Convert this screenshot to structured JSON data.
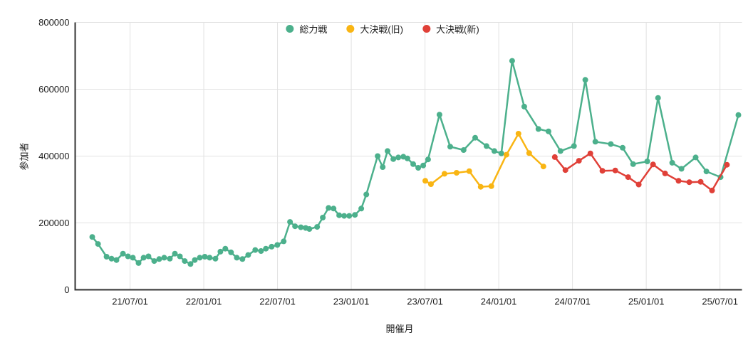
{
  "chart_data": {
    "type": "line",
    "title": "",
    "xlabel": "開催月",
    "ylabel": "参加者",
    "xlim": [
      2021.128,
      2025.649
    ],
    "ylim": [
      0,
      800000
    ],
    "grid": true,
    "legend_position": "top-center",
    "background_color": "#ffffff",
    "axis_color": "#333333",
    "grid_color": "#e2e2e2",
    "tick_label_color": "#1f1f1f",
    "yticks": [
      {
        "value": 0,
        "label": "0"
      },
      {
        "value": 200000,
        "label": "200000"
      },
      {
        "value": 400000,
        "label": "400000"
      },
      {
        "value": 600000,
        "label": "600000"
      },
      {
        "value": 800000,
        "label": "800000"
      }
    ],
    "xticks": [
      {
        "value": 2021.5,
        "label": "21/07/01"
      },
      {
        "value": 2022.0,
        "label": "22/01/01"
      },
      {
        "value": 2022.5,
        "label": "22/07/01"
      },
      {
        "value": 2023.0,
        "label": "23/01/01"
      },
      {
        "value": 2023.5,
        "label": "23/07/01"
      },
      {
        "value": 2024.0,
        "label": "24/01/01"
      },
      {
        "value": 2024.5,
        "label": "24/07/01"
      },
      {
        "value": 2025.0,
        "label": "25/01/01"
      },
      {
        "value": 2025.5,
        "label": "25/07/01"
      }
    ],
    "series": [
      {
        "name": "総力戦",
        "color": "#4cb08c",
        "points": [
          [
            2021.244,
            158000
          ],
          [
            2021.283,
            137000
          ],
          [
            2021.341,
            99000
          ],
          [
            2021.375,
            93000
          ],
          [
            2021.408,
            89000
          ],
          [
            2021.452,
            108000
          ],
          [
            2021.486,
            100000
          ],
          [
            2021.519,
            96000
          ],
          [
            2021.558,
            80000
          ],
          [
            2021.592,
            96000
          ],
          [
            2021.625,
            100000
          ],
          [
            2021.664,
            86000
          ],
          [
            2021.698,
            92000
          ],
          [
            2021.732,
            96000
          ],
          [
            2021.77,
            93000
          ],
          [
            2021.804,
            108000
          ],
          [
            2021.838,
            100000
          ],
          [
            2021.871,
            86000
          ],
          [
            2021.91,
            77000
          ],
          [
            2021.939,
            89000
          ],
          [
            2021.973,
            96000
          ],
          [
            2022.007,
            99000
          ],
          [
            2022.04,
            96000
          ],
          [
            2022.079,
            93000
          ],
          [
            2022.113,
            114000
          ],
          [
            2022.146,
            123000
          ],
          [
            2022.185,
            112000
          ],
          [
            2022.224,
            96000
          ],
          [
            2022.262,
            92000
          ],
          [
            2022.301,
            104000
          ],
          [
            2022.349,
            119000
          ],
          [
            2022.388,
            116000
          ],
          [
            2022.421,
            123000
          ],
          [
            2022.46,
            129000
          ],
          [
            2022.499,
            134000
          ],
          [
            2022.542,
            145000
          ],
          [
            2022.585,
            203000
          ],
          [
            2022.619,
            190000
          ],
          [
            2022.658,
            187000
          ],
          [
            2022.691,
            185000
          ],
          [
            2022.716,
            182000
          ],
          [
            2022.769,
            188000
          ],
          [
            2022.807,
            216000
          ],
          [
            2022.846,
            245000
          ],
          [
            2022.88,
            243000
          ],
          [
            2022.918,
            223000
          ],
          [
            2022.952,
            221000
          ],
          [
            2022.986,
            221000
          ],
          [
            2023.025,
            224000
          ],
          [
            2023.068,
            243000
          ],
          [
            2023.102,
            285000
          ],
          [
            2023.179,
            400000
          ],
          [
            2023.213,
            367000
          ],
          [
            2023.246,
            415000
          ],
          [
            2023.285,
            391000
          ],
          [
            2023.319,
            396000
          ],
          [
            2023.353,
            398000
          ],
          [
            2023.381,
            393000
          ],
          [
            2023.42,
            376000
          ],
          [
            2023.454,
            365000
          ],
          [
            2023.488,
            372000
          ],
          [
            2023.521,
            390000
          ],
          [
            2023.598,
            524000
          ],
          [
            2023.671,
            428000
          ],
          [
            2023.762,
            418000
          ],
          [
            2023.84,
            455000
          ],
          [
            2023.917,
            430000
          ],
          [
            2023.97,
            415000
          ],
          [
            2024.018,
            408000
          ],
          [
            2024.091,
            685000
          ],
          [
            2024.173,
            548000
          ],
          [
            2024.269,
            481000
          ],
          [
            2024.337,
            474000
          ],
          [
            2024.419,
            415000
          ],
          [
            2024.51,
            430000
          ],
          [
            2024.587,
            628000
          ],
          [
            2024.655,
            443000
          ],
          [
            2024.76,
            436000
          ],
          [
            2024.84,
            425000
          ],
          [
            2024.911,
            376000
          ],
          [
            2025.007,
            384000
          ],
          [
            2025.08,
            574000
          ],
          [
            2025.176,
            380000
          ],
          [
            2025.239,
            362000
          ],
          [
            2025.335,
            396000
          ],
          [
            2025.408,
            354000
          ],
          [
            2025.504,
            337000
          ],
          [
            2025.625,
            523000
          ]
        ]
      },
      {
        "name": "大決戦(旧)",
        "color": "#f9b513",
        "points": [
          [
            2023.502,
            326000
          ],
          [
            2023.54,
            316000
          ],
          [
            2023.632,
            347000
          ],
          [
            2023.714,
            350000
          ],
          [
            2023.8,
            355000
          ],
          [
            2023.878,
            308000
          ],
          [
            2023.95,
            310000
          ],
          [
            2024.052,
            404000
          ],
          [
            2024.134,
            467000
          ],
          [
            2024.206,
            409000
          ],
          [
            2024.303,
            369000
          ]
        ]
      },
      {
        "name": "大決戦(新)",
        "color": "#e04038",
        "points": [
          [
            2024.38,
            397000
          ],
          [
            2024.452,
            358000
          ],
          [
            2024.544,
            386000
          ],
          [
            2024.621,
            408000
          ],
          [
            2024.703,
            356000
          ],
          [
            2024.79,
            357000
          ],
          [
            2024.877,
            337000
          ],
          [
            2024.949,
            315000
          ],
          [
            2025.046,
            375000
          ],
          [
            2025.128,
            348000
          ],
          [
            2025.219,
            326000
          ],
          [
            2025.292,
            322000
          ],
          [
            2025.369,
            323000
          ],
          [
            2025.446,
            297000
          ],
          [
            2025.547,
            374000
          ]
        ]
      }
    ]
  }
}
